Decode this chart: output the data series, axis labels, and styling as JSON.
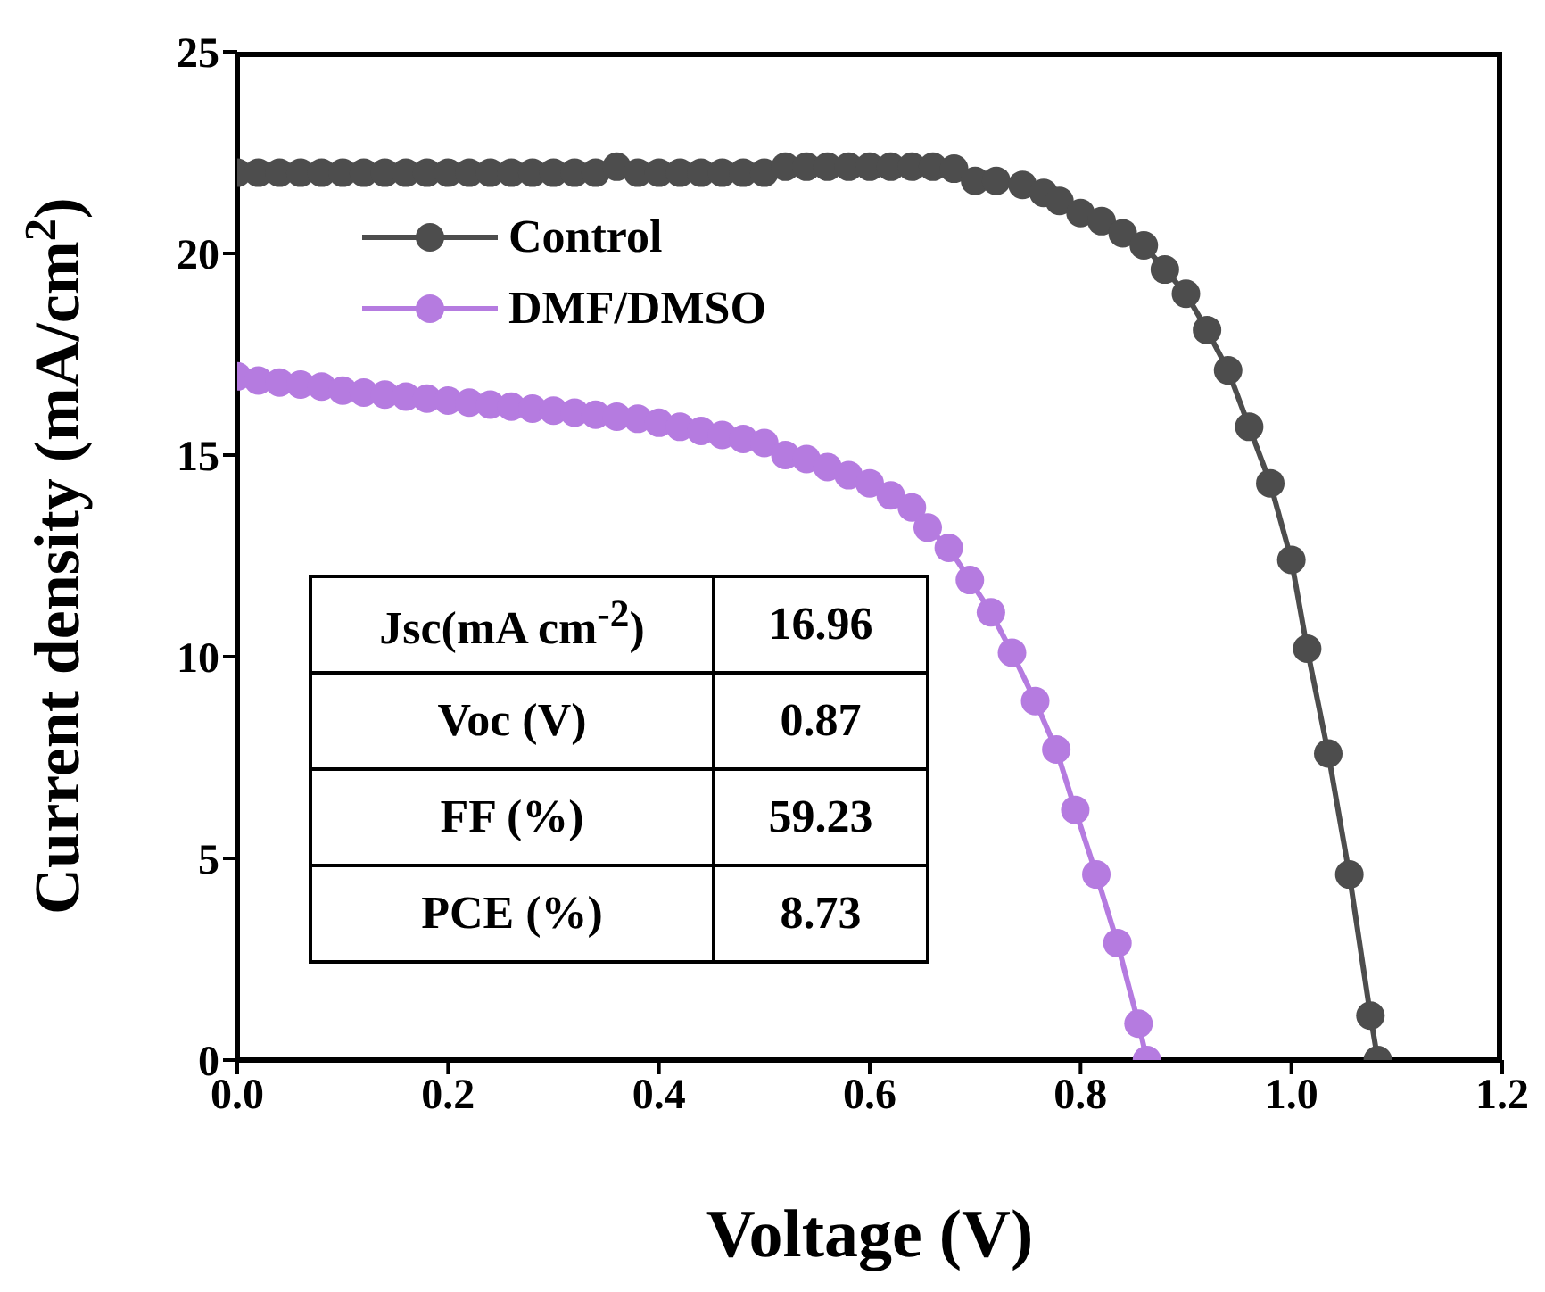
{
  "chart_data": {
    "type": "line",
    "xlabel": "Voltage (V)",
    "ylabel": "Current density (mA/cm$^{2}$)",
    "xlim": [
      0,
      1.2
    ],
    "xticks": [
      {
        "value": 0,
        "label": "0.0"
      },
      {
        "value": 0.2,
        "label": "0.2"
      },
      {
        "value": 0.4,
        "label": "0.4"
      },
      {
        "value": 0.6,
        "label": "0.6"
      },
      {
        "value": 0.8,
        "label": "0.8"
      },
      {
        "value": 1,
        "label": "1.0"
      },
      {
        "value": 1.2,
        "label": "1.2"
      }
    ],
    "ylim": [
      0,
      25
    ],
    "yticks": [
      0,
      5,
      10,
      15,
      20,
      25
    ],
    "grid": false,
    "legend": "top left",
    "marker": "circle",
    "line_style": "solid",
    "series": [
      {
        "name": "Control",
        "color": "#4d4d4d",
        "x": [
          0,
          0.02,
          0.04,
          0.06,
          0.08,
          0.1,
          0.12,
          0.14,
          0.16,
          0.18,
          0.2,
          0.22,
          0.24,
          0.26,
          0.28,
          0.3,
          0.32,
          0.34,
          0.36,
          0.38,
          0.4,
          0.42,
          0.44,
          0.46,
          0.48,
          0.5,
          0.52,
          0.54,
          0.56,
          0.58,
          0.6,
          0.62,
          0.64,
          0.66,
          0.68,
          0.7,
          0.72,
          0.745,
          0.765,
          0.78,
          0.8,
          0.82,
          0.84,
          0.86,
          0.88,
          0.9,
          0.92,
          0.94,
          0.96,
          0.98,
          1.0,
          1.015,
          1.035,
          1.055,
          1.075,
          1.082
        ],
        "values": [
          22,
          22,
          22,
          22,
          22,
          22,
          22,
          22,
          22,
          22,
          22,
          22,
          22,
          22,
          22,
          22,
          22,
          22,
          22.15,
          22,
          22,
          22,
          22,
          22,
          22,
          22,
          22.15,
          22.15,
          22.15,
          22.15,
          22.15,
          22.15,
          22.15,
          22.15,
          22.1,
          21.8,
          21.8,
          21.7,
          21.5,
          21.3,
          21,
          20.8,
          20.5,
          20.2,
          19.6,
          19,
          18.1,
          17.1,
          15.7,
          14.3,
          12.4,
          10.2,
          7.6,
          4.6,
          1.1,
          0
        ]
      },
      {
        "name": "DMF/DMSO",
        "color": "#b57be0",
        "x": [
          0,
          0.02,
          0.04,
          0.06,
          0.08,
          0.1,
          0.12,
          0.14,
          0.16,
          0.18,
          0.2,
          0.22,
          0.24,
          0.26,
          0.28,
          0.3,
          0.32,
          0.34,
          0.36,
          0.38,
          0.4,
          0.42,
          0.44,
          0.46,
          0.48,
          0.5,
          0.52,
          0.54,
          0.56,
          0.58,
          0.6,
          0.62,
          0.64,
          0.655,
          0.675,
          0.695,
          0.715,
          0.735,
          0.757,
          0.777,
          0.795,
          0.815,
          0.835,
          0.855,
          0.863
        ],
        "values": [
          16.95,
          16.85,
          16.8,
          16.75,
          16.7,
          16.6,
          16.55,
          16.5,
          16.45,
          16.4,
          16.35,
          16.3,
          16.25,
          16.2,
          16.15,
          16.1,
          16.05,
          16,
          15.95,
          15.9,
          15.8,
          15.7,
          15.6,
          15.5,
          15.4,
          15.3,
          15,
          14.9,
          14.7,
          14.5,
          14.3,
          14,
          13.7,
          13.2,
          12.7,
          11.9,
          11.1,
          10.1,
          8.9,
          7.7,
          6.2,
          4.6,
          2.9,
          0.9,
          0
        ]
      }
    ],
    "annotations": [
      "Jsc(mA cm$^{-2}$)",
      "16.96",
      "Voc (V)",
      "0.87",
      "FF (%)",
      "59.23",
      "PCE (%)",
      "8.73"
    ]
  }
}
